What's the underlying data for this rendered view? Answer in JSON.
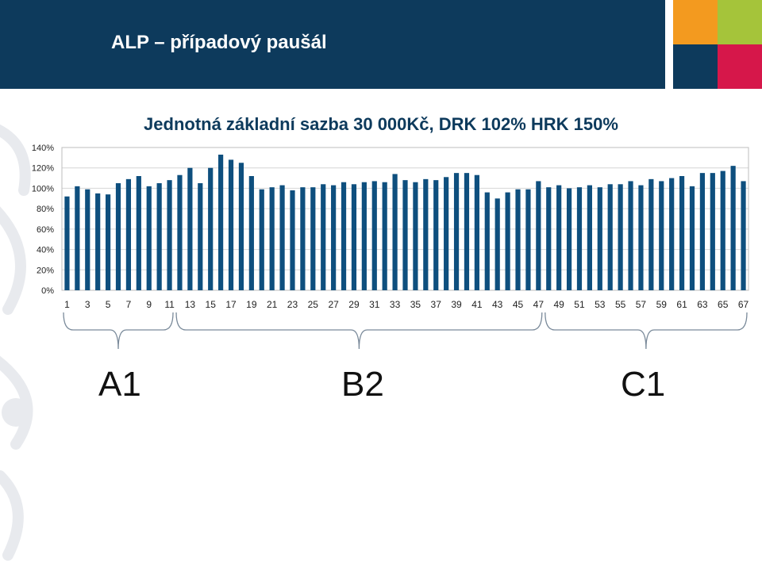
{
  "slide": {
    "title": "ALP – případový paušál"
  },
  "colors": {
    "header": "#0d3a5c",
    "bar": "#0e4f7e",
    "orange": "#f39a1f",
    "green": "#a5c43a",
    "pink": "#d6174a"
  },
  "groups": [
    {
      "label": "A1",
      "from": 1,
      "to": 11
    },
    {
      "label": "B2",
      "from": 12,
      "to": 47
    },
    {
      "label": "C1",
      "from": 48,
      "to": 67
    }
  ],
  "chart_data": {
    "type": "bar",
    "title": "Jednotná základní sazba 30 000Kč, DRK 102% HRK 150%",
    "xlabel": "",
    "ylabel": "",
    "ylim": [
      0,
      1.4
    ],
    "yticks": [
      "0%",
      "20%",
      "40%",
      "60%",
      "80%",
      "100%",
      "120%",
      "140%"
    ],
    "grid": true,
    "categories": [
      "1",
      "2",
      "3",
      "4",
      "5",
      "6",
      "7",
      "8",
      "9",
      "10",
      "11",
      "12",
      "13",
      "14",
      "15",
      "16",
      "17",
      "18",
      "19",
      "20",
      "21",
      "22",
      "23",
      "24",
      "25",
      "26",
      "27",
      "28",
      "29",
      "30",
      "31",
      "32",
      "33",
      "34",
      "35",
      "36",
      "37",
      "38",
      "39",
      "40",
      "41",
      "42",
      "43",
      "44",
      "45",
      "46",
      "47",
      "48",
      "49",
      "50",
      "51",
      "52",
      "53",
      "54",
      "55",
      "56",
      "57",
      "58",
      "59",
      "60",
      "61",
      "62",
      "63",
      "64",
      "65",
      "66",
      "67"
    ],
    "tick_labels": [
      "1",
      "3",
      "5",
      "7",
      "9",
      "11",
      "13",
      "15",
      "17",
      "19",
      "21",
      "23",
      "25",
      "27",
      "29",
      "31",
      "33",
      "35",
      "37",
      "39",
      "41",
      "43",
      "45",
      "47",
      "49",
      "51",
      "53",
      "55",
      "57",
      "59",
      "61",
      "63",
      "65",
      "67"
    ],
    "values": [
      0.92,
      1.02,
      0.99,
      0.95,
      0.94,
      1.05,
      1.09,
      1.12,
      1.02,
      1.05,
      1.08,
      1.13,
      1.2,
      1.05,
      1.2,
      1.33,
      1.28,
      1.25,
      1.12,
      0.99,
      1.01,
      1.03,
      0.98,
      1.01,
      1.01,
      1.04,
      1.03,
      1.06,
      1.04,
      1.06,
      1.07,
      1.06,
      1.14,
      1.08,
      1.06,
      1.09,
      1.08,
      1.11,
      1.15,
      1.15,
      1.13,
      0.96,
      0.9,
      0.96,
      0.99,
      0.99,
      1.07,
      1.01,
      1.03,
      1.0,
      1.01,
      1.03,
      1.01,
      1.04,
      1.04,
      1.07,
      1.03,
      1.09,
      1.07,
      1.1,
      1.12,
      1.02,
      1.15,
      1.15,
      1.17,
      1.22,
      1.07
    ]
  }
}
